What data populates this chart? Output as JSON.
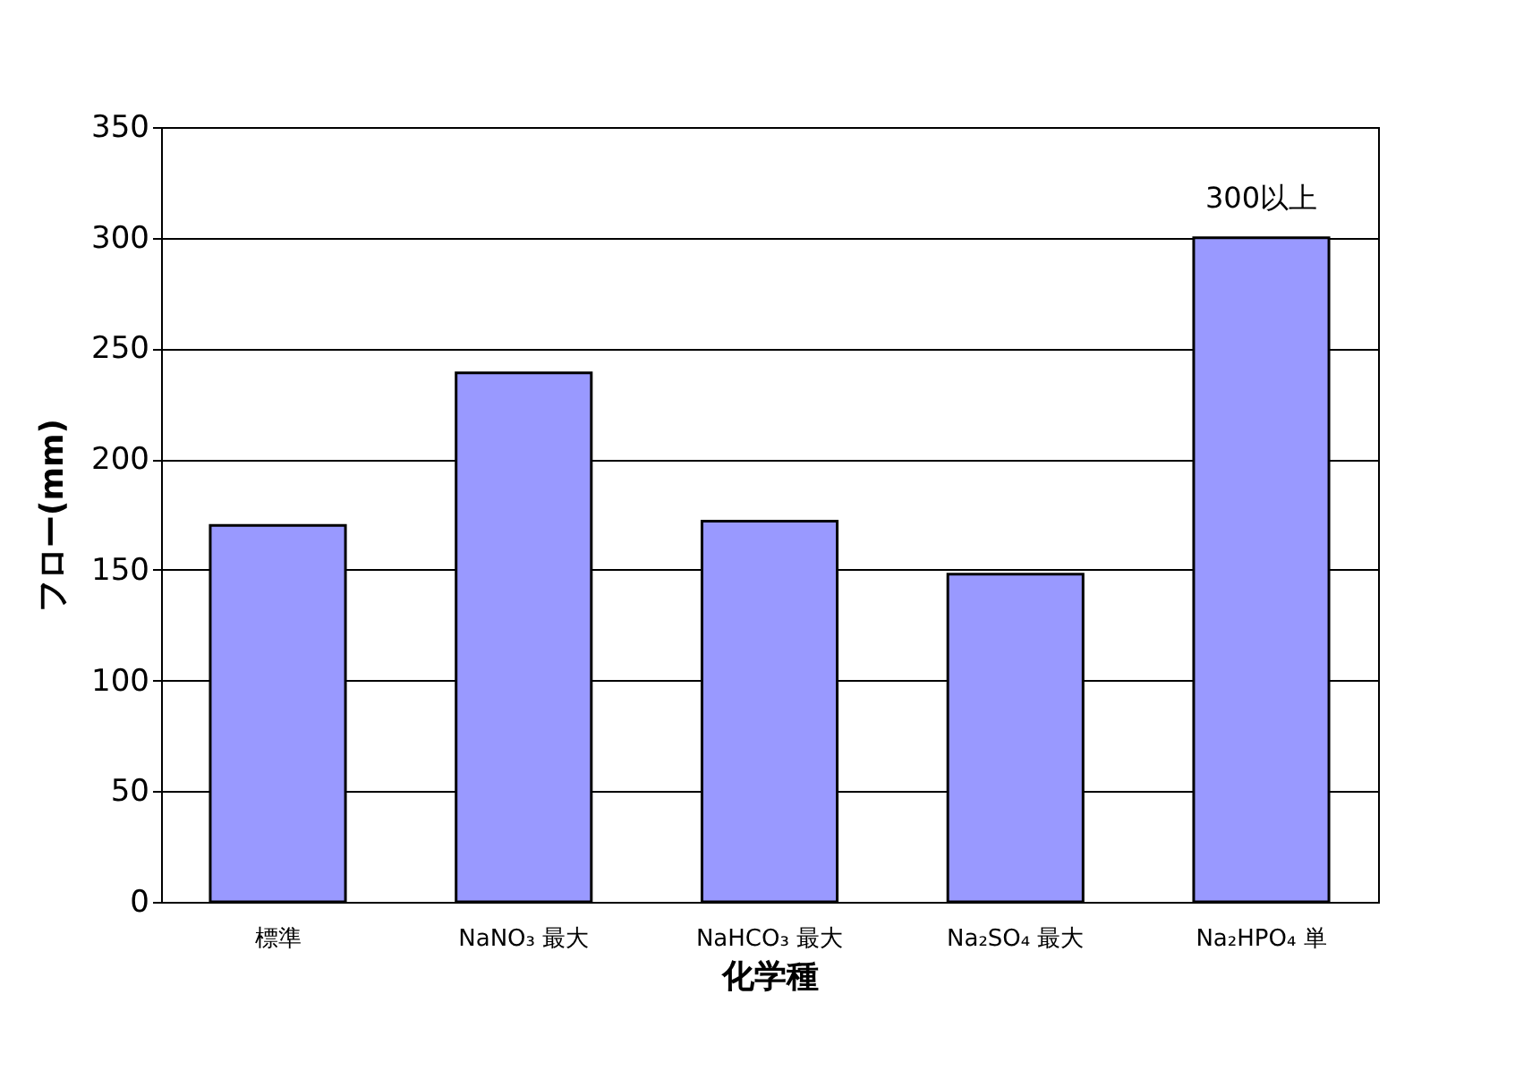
{
  "chart_data": {
    "type": "bar",
    "xlabel": "化学種",
    "ylabel": "フロー(mm)",
    "categories": [
      "標準",
      "NaNO₃ 最大",
      "NaHCO₃ 最大",
      "Na₂SO₄ 最大",
      "Na₂HPO₄ 単"
    ],
    "values": [
      170,
      239,
      172,
      148,
      300
    ],
    "color": "#9999ff",
    "ylim": [
      0,
      350
    ],
    "yticks": [
      0,
      50,
      100,
      150,
      200,
      250,
      300,
      350
    ],
    "grid": "y",
    "annotations": [
      {
        "text": "300以上",
        "x": "Na₂HPO₄ 単",
        "y": 300
      }
    ]
  }
}
